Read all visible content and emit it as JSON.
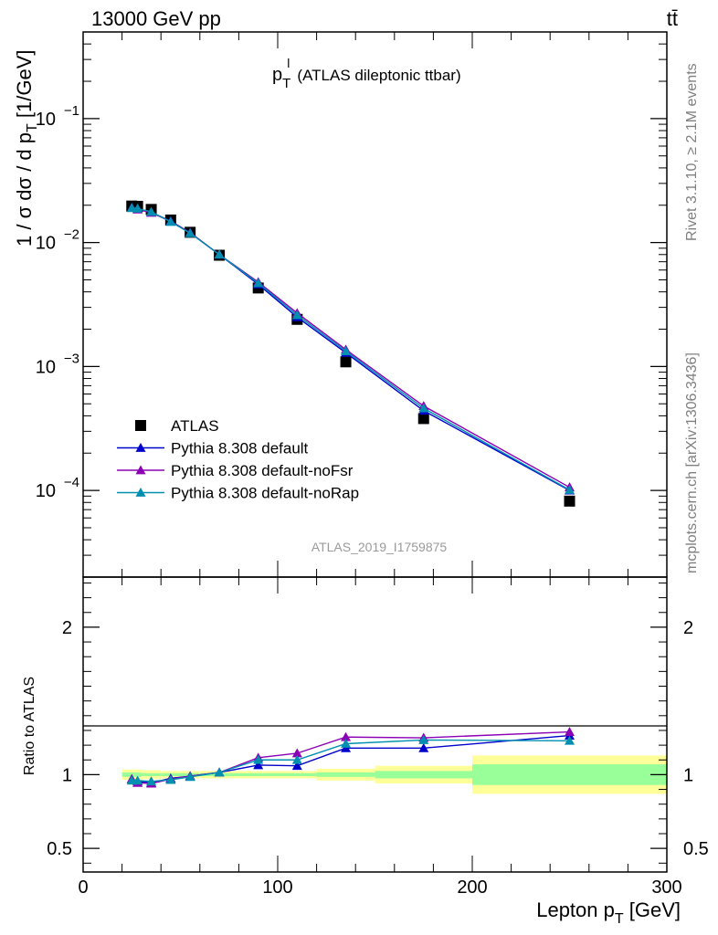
{
  "header": {
    "left": "13000 GeV pp",
    "right": "tt̄"
  },
  "side_labels": {
    "rivet": "Rivet 3.1.10, ≥ 2.1M events",
    "mcplots": "mcplots.cern.ch [arXiv:1306.3436]"
  },
  "chart_data": [
    {
      "type": "scatter",
      "panel": "main",
      "title_main": "p",
      "title_sup": "l",
      "title_sub": "T",
      "title_rest": "(ATLAS dileptonic ttbar)",
      "ylabel": "1 / σ  dσ / d p_T [1/GeV]",
      "ylabel_parts": {
        "pre": "1 / σ  dσ / d p",
        "sub": "T",
        "post": " [1/GeV]"
      },
      "yscale": "log",
      "ylim": [
        2e-05,
        0.5
      ],
      "xlim": [
        0,
        300
      ],
      "yticks": [
        {
          "value": 0.1,
          "base": "10",
          "exp": "−1"
        },
        {
          "value": 0.01,
          "base": "10",
          "exp": "−2"
        },
        {
          "value": 0.001,
          "base": "10",
          "exp": "−3"
        },
        {
          "value": 0.0001,
          "base": "10",
          "exp": "−4"
        }
      ],
      "watermark": "ATLAS_2019_I1759875",
      "legend_position": "bottom-left",
      "x": [
        25,
        28,
        35,
        45,
        55,
        70,
        90,
        110,
        135,
        175,
        250
      ],
      "series": [
        {
          "name": "ATLAS",
          "color": "#000000",
          "marker": "square",
          "values": [
            0.0197,
            0.0196,
            0.0185,
            0.0152,
            0.0121,
            0.0079,
            0.0043,
            0.0024,
            0.00109,
            0.00038,
            8.2e-05
          ]
        },
        {
          "name": "Pythia 8.308 default",
          "color": "#0000cc",
          "marker": "triangle",
          "values": [
            0.0191,
            0.0187,
            0.0175,
            0.0149,
            0.012,
            0.008,
            0.0046,
            0.0025,
            0.00129,
            0.00044,
            0.0001
          ]
        },
        {
          "name": "Pythia 8.308 default-noFsr",
          "color": "#8b00b5",
          "marker": "triangle",
          "values": [
            0.0191,
            0.0185,
            0.0174,
            0.0148,
            0.012,
            0.008,
            0.0048,
            0.0027,
            0.00137,
            0.00048,
            0.000106
          ]
        },
        {
          "name": "Pythia 8.308 default-noRap",
          "color": "#008fb0",
          "marker": "triangle",
          "values": [
            0.019,
            0.0188,
            0.0177,
            0.0147,
            0.0119,
            0.008,
            0.0047,
            0.0026,
            0.00133,
            0.00046,
            0.000101
          ]
        }
      ]
    },
    {
      "type": "scatter",
      "panel": "ratio",
      "ylabel": "Ratio to ATLAS",
      "xlabel_parts": {
        "pre": "Lepton p",
        "sub": "T",
        "post": " [GeV]"
      },
      "ylim": [
        0.34,
        2.34
      ],
      "xlim": [
        0,
        300
      ],
      "yticks": [
        {
          "value": 0.5,
          "label": "0.5"
        },
        {
          "value": 1,
          "label": "1"
        },
        {
          "value": 2,
          "label": "2"
        }
      ],
      "xticks": [
        {
          "value": 0,
          "label": "0"
        },
        {
          "value": 100,
          "label": "100"
        },
        {
          "value": 200,
          "label": "200"
        },
        {
          "value": 300,
          "label": "300"
        }
      ],
      "uncertainty_bands": [
        {
          "x0": 20,
          "x1": 30,
          "stat": [
            0.985,
            1.015
          ],
          "total": [
            0.965,
            1.035
          ]
        },
        {
          "x0": 30,
          "x1": 40,
          "stat": [
            0.99,
            1.01
          ],
          "total": [
            0.97,
            1.03
          ]
        },
        {
          "x0": 40,
          "x1": 50,
          "stat": [
            0.99,
            1.01
          ],
          "total": [
            0.975,
            1.025
          ]
        },
        {
          "x0": 50,
          "x1": 60,
          "stat": [
            0.99,
            1.01
          ],
          "total": [
            0.975,
            1.025
          ]
        },
        {
          "x0": 60,
          "x1": 80,
          "stat": [
            0.99,
            1.01
          ],
          "total": [
            0.975,
            1.025
          ]
        },
        {
          "x0": 80,
          "x1": 100,
          "stat": [
            0.99,
            1.01
          ],
          "total": [
            0.975,
            1.025
          ]
        },
        {
          "x0": 100,
          "x1": 120,
          "stat": [
            0.99,
            1.01
          ],
          "total": [
            0.975,
            1.025
          ]
        },
        {
          "x0": 120,
          "x1": 150,
          "stat": [
            0.985,
            1.015
          ],
          "total": [
            0.96,
            1.04
          ]
        },
        {
          "x0": 150,
          "x1": 200,
          "stat": [
            0.975,
            1.025
          ],
          "total": [
            0.94,
            1.06
          ]
        },
        {
          "x0": 200,
          "x1": 300,
          "stat": [
            0.93,
            1.07
          ],
          "total": [
            0.87,
            1.13
          ]
        }
      ],
      "x": [
        25,
        28,
        35,
        45,
        55,
        70,
        90,
        110,
        135,
        175,
        250
      ],
      "series": [
        {
          "name": "Pythia 8.308 default",
          "color": "#0000cc",
          "values": [
            0.97,
            0.955,
            0.945,
            0.975,
            0.99,
            1.015,
            1.065,
            1.06,
            1.18,
            1.18,
            1.265
          ]
        },
        {
          "name": "Pythia 8.308 default-noFsr",
          "color": "#8b00b5",
          "values": [
            0.97,
            0.945,
            0.94,
            0.97,
            0.99,
            1.015,
            1.115,
            1.145,
            1.255,
            1.25,
            1.29
          ]
        },
        {
          "name": "Pythia 8.308 default-noRap",
          "color": "#008fb0",
          "values": [
            0.96,
            0.96,
            0.955,
            0.965,
            0.985,
            1.015,
            1.1,
            1.1,
            1.21,
            1.235,
            1.23
          ]
        }
      ]
    }
  ]
}
